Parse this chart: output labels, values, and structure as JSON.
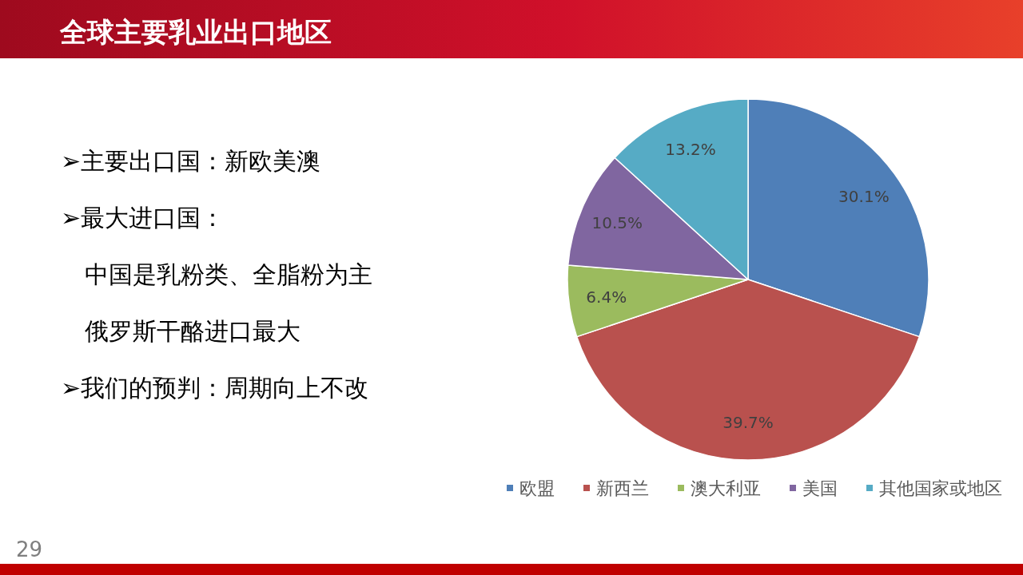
{
  "chart_data": {
    "type": "pie",
    "title": "全球主要乳业出口地区",
    "categories": [
      "欧盟",
      "新西兰",
      "澳大利亚",
      "美国",
      "其他国家或地区"
    ],
    "values": [
      30.1,
      39.7,
      6.4,
      10.5,
      13.2
    ],
    "colors": [
      "#4f7fb8",
      "#b9514e",
      "#9bbb5e",
      "#8066a0",
      "#56abc5"
    ],
    "value_labels": [
      "30.1%",
      "39.7%",
      "6.4%",
      "10.5%",
      "13.2%"
    ],
    "legend": "bottom",
    "annotations": [
      "➢主要出口国：新欧美澳",
      "➢最大进口国：",
      "　中国是乳粉类、全脂粉为主",
      "　俄罗斯干酪进口最大",
      "➢我们的预判：周期向上不改",
      "29"
    ]
  }
}
